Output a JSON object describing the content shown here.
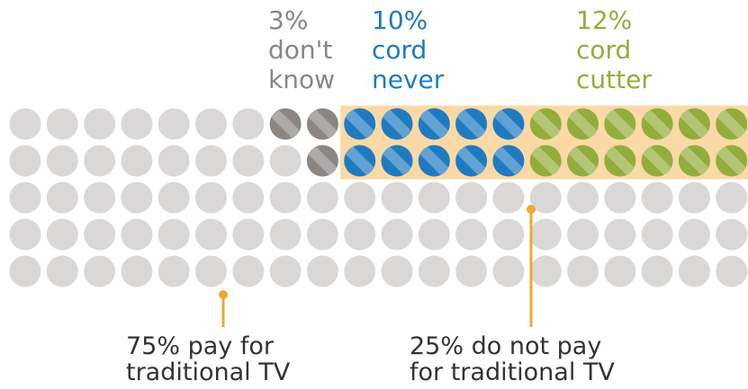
{
  "chart_data": {
    "type": "waffle",
    "segments": [
      {
        "value": 75,
        "color": "#dad8d6"
      },
      {
        "value": 3,
        "value_label": "3%",
        "lines": [
          "don't",
          "know"
        ],
        "color": "#8c8582"
      },
      {
        "value": 10,
        "value_label": "10%",
        "lines": [
          "cord",
          "never"
        ],
        "color": "#1f7bc0"
      },
      {
        "value": 12,
        "value_label": "12%",
        "lines": [
          "cord",
          "cutter"
        ],
        "color": "#93ad3c"
      }
    ],
    "annotations": [
      {
        "lines": [
          "75% pay for",
          "traditional TV"
        ]
      },
      {
        "lines": [
          "25% do not pay",
          "for traditional TV"
        ]
      }
    ]
  }
}
